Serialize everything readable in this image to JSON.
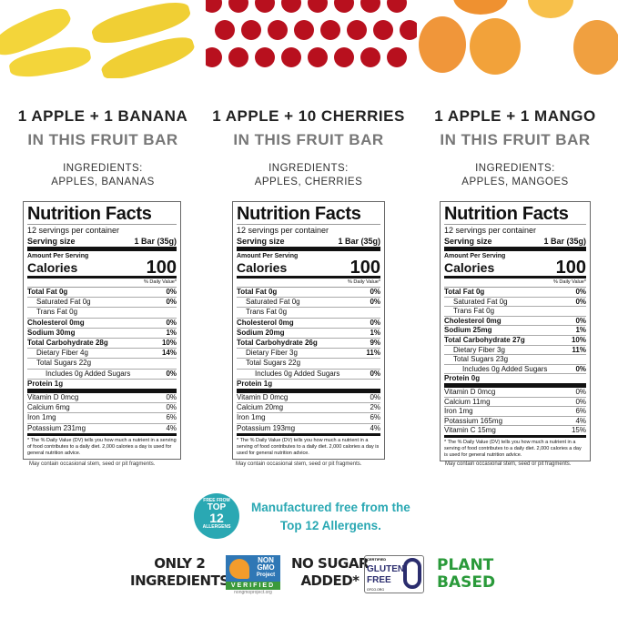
{
  "fruits": [
    "banana-image",
    "cherry-image",
    "mango-image"
  ],
  "columns": [
    {
      "title": "1 APPLE + 1 BANANA",
      "subtitle": "IN THIS FRUIT BAR",
      "ingredients_label": "INGREDIENTS:",
      "ingredients": "APPLES, BANANAS",
      "label": {
        "title": "Nutrition Facts",
        "servings": "12 servings per container",
        "serving_size_label": "Serving size",
        "serving_size": "1 Bar (35g)",
        "amount_per_serving": "Amount Per Serving",
        "calories_label": "Calories",
        "calories": "100",
        "dv_header": "% Daily Value*",
        "rows": [
          [
            "Total Fat 0g",
            "0%",
            "b"
          ],
          [
            "Saturated Fat 0g",
            "0%",
            "i1"
          ],
          [
            "Trans Fat 0g",
            "",
            "i1"
          ],
          [
            "Cholesterol 0mg",
            "0%",
            "b"
          ],
          [
            "Sodium 30mg",
            "1%",
            "b"
          ],
          [
            "Total Carbohydrate 28g",
            "10%",
            "b"
          ],
          [
            "Dietary Fiber 4g",
            "14%",
            "i1"
          ],
          [
            "Total Sugars 22g",
            "",
            "i1"
          ],
          [
            "Includes 0g Added Sugars",
            "0%",
            "i2"
          ],
          [
            "Protein 1g",
            "",
            "b thick"
          ],
          [
            "Vitamin D 0mcg",
            "0%",
            "min"
          ],
          [
            "Calcium 6mg",
            "0%",
            "min"
          ],
          [
            "Iron 1mg",
            "6%",
            "min"
          ],
          [
            "Potassium 231mg",
            "4%",
            "min last"
          ]
        ],
        "footnote": "* The % Daily Value (DV) tells you how much a nutrient in a serving of food contributes to a daily diet. 2,000 calories a day is used for general nutrition advice."
      },
      "disclaimer": "May contain occasional stem, seed or pit fragments."
    },
    {
      "title": "1 APPLE + 10 CHERRIES",
      "subtitle": "IN THIS FRUIT BAR",
      "ingredients_label": "INGREDIENTS:",
      "ingredients": "APPLES, CHERRIES",
      "label": {
        "title": "Nutrition Facts",
        "servings": "12 servings per container",
        "serving_size_label": "Serving size",
        "serving_size": "1 Bar (35g)",
        "amount_per_serving": "Amount Per Serving",
        "calories_label": "Calories",
        "calories": "100",
        "dv_header": "% Daily Value*",
        "rows": [
          [
            "Total Fat 0g",
            "0%",
            "b"
          ],
          [
            "Saturated Fat 0g",
            "0%",
            "i1"
          ],
          [
            "Trans Fat 0g",
            "",
            "i1"
          ],
          [
            "Cholesterol 0mg",
            "0%",
            "b"
          ],
          [
            "Sodium 20mg",
            "1%",
            "b"
          ],
          [
            "Total Carbohydrate 26g",
            "9%",
            "b"
          ],
          [
            "Dietary Fiber 3g",
            "11%",
            "i1"
          ],
          [
            "Total Sugars 22g",
            "",
            "i1"
          ],
          [
            "Includes 0g Added Sugars",
            "0%",
            "i2"
          ],
          [
            "Protein 1g",
            "",
            "b thick"
          ],
          [
            "Vitamin D 0mcg",
            "0%",
            "min"
          ],
          [
            "Calcium 20mg",
            "2%",
            "min"
          ],
          [
            "Iron 1mg",
            "6%",
            "min"
          ],
          [
            "Potassium 193mg",
            "4%",
            "min last"
          ]
        ],
        "footnote": "* The % Daily Value (DV) tells you how much a nutrient in a serving of food contributes to a daily diet. 2,000 calories a day is used for general nutrition advice."
      },
      "disclaimer": "May contain occasional stem, seed or pit fragments."
    },
    {
      "title": "1 APPLE + 1 MANGO",
      "subtitle": "IN THIS FRUIT BAR",
      "ingredients_label": "INGREDIENTS:",
      "ingredients": "APPLES, MANGOES",
      "label": {
        "title": "Nutrition Facts",
        "servings": "12 servings per container",
        "serving_size_label": "Serving size",
        "serving_size": "1 Bar (35g)",
        "amount_per_serving": "Amount Per Serving",
        "calories_label": "Calories",
        "calories": "100",
        "dv_header": "% Daily Value*",
        "rows": [
          [
            "Total Fat 0g",
            "0%",
            "b"
          ],
          [
            "Saturated Fat 0g",
            "0%",
            "i1"
          ],
          [
            "Trans Fat 0g",
            "",
            "i1"
          ],
          [
            "Cholesterol 0mg",
            "0%",
            "b"
          ],
          [
            "Sodium 25mg",
            "1%",
            "b"
          ],
          [
            "Total Carbohydrate 27g",
            "10%",
            "b"
          ],
          [
            "Dietary Fiber 3g",
            "11%",
            "i1"
          ],
          [
            "Total Sugars 23g",
            "",
            "i1"
          ],
          [
            "Includes 0g Added Sugars",
            "0%",
            "i2"
          ],
          [
            "Protein 0g",
            "",
            "b thick"
          ],
          [
            "Vitamin D 0mcg",
            "0%",
            "min"
          ],
          [
            "Calcium 11mg",
            "0%",
            "min"
          ],
          [
            "Iron 1mg",
            "6%",
            "min"
          ],
          [
            "Potassium 165mg",
            "4%",
            "min"
          ],
          [
            "Vitamin C 15mg",
            "15%",
            "min last"
          ]
        ],
        "footnote": "* The % Daily Value (DV) tells you how much a nutrient in a serving of food contributes to a daily diet. 2,000 calories a day is used for general nutrition advice."
      },
      "disclaimer": "May contain occasional stem, seed or pit fragments."
    }
  ],
  "allergen_badge": {
    "line1": "FREE FROM",
    "line2": "TOP",
    "line3": "12",
    "line4": "ALLERGENS"
  },
  "allergen_text": {
    "line1": "Manufactured free from the",
    "line2": "Top 12 Allergens."
  },
  "badges": {
    "only2": {
      "line1": "ONLY 2",
      "line2": "INGREDIENTS"
    },
    "nongmo": {
      "line1": "NON",
      "line2": "GMO",
      "line3": "Project",
      "line4": "VERIFIED",
      "url": "nongmoproject.org"
    },
    "nosugar": {
      "line1": "NO SUGAR",
      "line2": "ADDED*"
    },
    "gluten": {
      "line1": "CERTIFIED",
      "line2": "GLUTEN",
      "line3": "FREE",
      "line4": "GFCO.ORG"
    },
    "plant": {
      "line1": "PLANT",
      "line2": "BASED"
    }
  },
  "colors": {
    "teal": "#2aa8b3",
    "green": "#2a9a3a",
    "banana": "#f3d53a",
    "cherry": "#b8101e",
    "mango": "#f2a23a"
  }
}
